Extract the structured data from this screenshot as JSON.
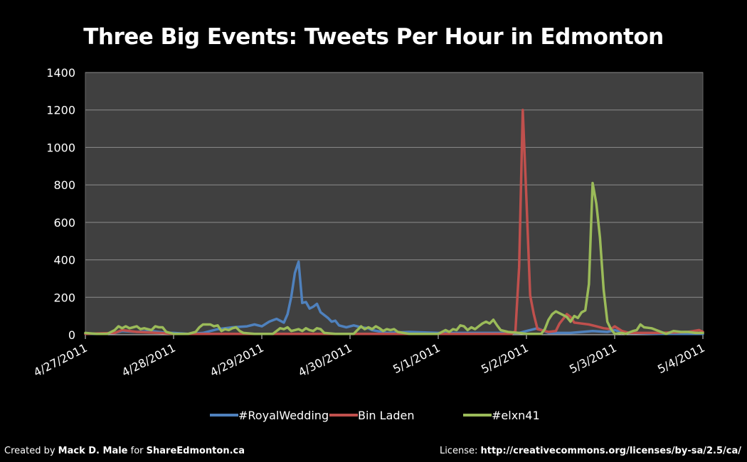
{
  "chart_data": {
    "type": "line",
    "title": "Three Big Events: Tweets Per Hour in Edmonton",
    "xlabel": "",
    "ylabel": "",
    "x_axis": {
      "tick_labels": [
        "4/27/2011",
        "4/28/2011",
        "4/29/2011",
        "4/30/2011",
        "5/1/2011",
        "5/2/2011",
        "5/3/2011",
        "5/4/2011"
      ],
      "range": [
        "4/27/2011 00:00",
        "5/4/2011 00:00"
      ]
    },
    "y_axis": {
      "tick_labels": [
        "0",
        "200",
        "400",
        "600",
        "800",
        "1000",
        "1200",
        "1400"
      ],
      "ylim": [
        0,
        1400
      ]
    },
    "grid": true,
    "legend_position": "bottom",
    "plot_background": "#404040",
    "series": [
      {
        "name": "#RoyalWedding",
        "color": "#4F81BD",
        "points": [
          [
            "4/27/2011 00:00",
            5
          ],
          [
            "4/27/2011 04:00",
            5
          ],
          [
            "4/27/2011 08:00",
            10
          ],
          [
            "4/27/2011 10:00",
            20
          ],
          [
            "4/27/2011 14:00",
            15
          ],
          [
            "4/27/2011 18:00",
            20
          ],
          [
            "4/27/2011 22:00",
            10
          ],
          [
            "4/28/2011 00:00",
            10
          ],
          [
            "4/28/2011 04:00",
            5
          ],
          [
            "4/28/2011 08:00",
            10
          ],
          [
            "4/28/2011 12:00",
            30
          ],
          [
            "4/28/2011 16:00",
            40
          ],
          [
            "4/28/2011 20:00",
            45
          ],
          [
            "4/28/2011 22:00",
            55
          ],
          [
            "4/29/2011 00:00",
            45
          ],
          [
            "4/29/2011 02:00",
            70
          ],
          [
            "4/29/2011 04:00",
            85
          ],
          [
            "4/29/2011 06:00",
            65
          ],
          [
            "4/29/2011 07:00",
            110
          ],
          [
            "4/29/2011 08:00",
            200
          ],
          [
            "4/29/2011 09:00",
            330
          ],
          [
            "4/29/2011 10:00",
            390
          ],
          [
            "4/29/2011 11:00",
            170
          ],
          [
            "4/29/2011 12:00",
            175
          ],
          [
            "4/29/2011 13:00",
            140
          ],
          [
            "4/29/2011 14:00",
            150
          ],
          [
            "4/29/2011 15:00",
            165
          ],
          [
            "4/29/2011 16:00",
            120
          ],
          [
            "4/29/2011 18:00",
            90
          ],
          [
            "4/29/2011 19:00",
            70
          ],
          [
            "4/29/2011 20:00",
            75
          ],
          [
            "4/29/2011 21:00",
            50
          ],
          [
            "4/29/2011 23:00",
            40
          ],
          [
            "4/30/2011 01:00",
            50
          ],
          [
            "4/30/2011 03:00",
            40
          ],
          [
            "4/30/2011 05:00",
            35
          ],
          [
            "4/30/2011 06:00",
            25
          ],
          [
            "4/30/2011 10:00",
            10
          ],
          [
            "4/30/2011 16:00",
            15
          ],
          [
            "5/1/2011 00:00",
            10
          ],
          [
            "5/1/2011 12:00",
            10
          ],
          [
            "5/1/2011 22:00",
            10
          ],
          [
            "5/2/2011 00:00",
            20
          ],
          [
            "5/2/2011 03:00",
            35
          ],
          [
            "5/2/2011 06:00",
            10
          ],
          [
            "5/2/2011 12:00",
            10
          ],
          [
            "5/2/2011 18:00",
            20
          ],
          [
            "5/2/2011 22:00",
            15
          ],
          [
            "5/3/2011 00:00",
            25
          ],
          [
            "5/3/2011 03:00",
            10
          ],
          [
            "5/3/2011 12:00",
            5
          ],
          [
            "5/4/2011 00:00",
            5
          ]
        ]
      },
      {
        "name": "Bin Laden",
        "color": "#C0504D",
        "points": [
          [
            "4/27/2011 00:00",
            5
          ],
          [
            "4/27/2011 08:00",
            10
          ],
          [
            "4/27/2011 10:00",
            25
          ],
          [
            "4/27/2011 14:00",
            15
          ],
          [
            "4/27/2011 20:00",
            10
          ],
          [
            "4/28/2011 00:00",
            5
          ],
          [
            "4/29/2011 00:00",
            5
          ],
          [
            "4/30/2011 00:00",
            5
          ],
          [
            "5/1/2011 00:00",
            5
          ],
          [
            "5/1/2011 20:00",
            5
          ],
          [
            "5/1/2011 21:00",
            20
          ],
          [
            "5/1/2011 22:00",
            360
          ],
          [
            "5/1/2011 23:00",
            1200
          ],
          [
            "5/2/2011 00:00",
            720
          ],
          [
            "5/2/2011 01:00",
            210
          ],
          [
            "5/2/2011 02:00",
            110
          ],
          [
            "5/2/2011 03:00",
            30
          ],
          [
            "5/2/2011 06:00",
            15
          ],
          [
            "5/2/2011 08:00",
            20
          ],
          [
            "5/2/2011 09:00",
            60
          ],
          [
            "5/2/2011 10:00",
            85
          ],
          [
            "5/2/2011 11:00",
            110
          ],
          [
            "5/2/2011 12:00",
            95
          ],
          [
            "5/2/2011 13:00",
            65
          ],
          [
            "5/2/2011 15:00",
            60
          ],
          [
            "5/2/2011 17:00",
            55
          ],
          [
            "5/2/2011 19:00",
            45
          ],
          [
            "5/2/2011 21:00",
            35
          ],
          [
            "5/2/2011 23:00",
            30
          ],
          [
            "5/3/2011 00:00",
            45
          ],
          [
            "5/3/2011 02:00",
            20
          ],
          [
            "5/3/2011 04:00",
            10
          ],
          [
            "5/3/2011 12:00",
            10
          ],
          [
            "5/3/2011 20:00",
            15
          ],
          [
            "5/3/2011 23:00",
            25
          ],
          [
            "5/4/2011 00:00",
            15
          ]
        ]
      },
      {
        "name": "#elxn41",
        "color": "#9BBB59",
        "points": [
          [
            "4/27/2011 00:00",
            10
          ],
          [
            "4/27/2011 03:00",
            5
          ],
          [
            "4/27/2011 06:00",
            5
          ],
          [
            "4/27/2011 08:00",
            25
          ],
          [
            "4/27/2011 09:00",
            45
          ],
          [
            "4/27/2011 10:00",
            35
          ],
          [
            "4/27/2011 11:00",
            45
          ],
          [
            "4/27/2011 12:00",
            35
          ],
          [
            "4/27/2011 13:00",
            40
          ],
          [
            "4/27/2011 14:00",
            45
          ],
          [
            "4/27/2011 15:00",
            30
          ],
          [
            "4/27/2011 16:00",
            35
          ],
          [
            "4/27/2011 18:00",
            25
          ],
          [
            "4/27/2011 19:00",
            45
          ],
          [
            "4/27/2011 20:00",
            40
          ],
          [
            "4/27/2011 21:00",
            40
          ],
          [
            "4/27/2011 22:00",
            15
          ],
          [
            "4/28/2011 00:00",
            5
          ],
          [
            "4/28/2011 04:00",
            5
          ],
          [
            "4/28/2011 06:00",
            15
          ],
          [
            "4/28/2011 07:00",
            40
          ],
          [
            "4/28/2011 08:00",
            55
          ],
          [
            "4/28/2011 09:00",
            55
          ],
          [
            "4/28/2011 10:00",
            55
          ],
          [
            "4/28/2011 11:00",
            45
          ],
          [
            "4/28/2011 12:00",
            50
          ],
          [
            "4/28/2011 13:00",
            20
          ],
          [
            "4/28/2011 14:00",
            30
          ],
          [
            "4/28/2011 15:00",
            25
          ],
          [
            "4/28/2011 16:00",
            35
          ],
          [
            "4/28/2011 17:00",
            40
          ],
          [
            "4/28/2011 18:00",
            20
          ],
          [
            "4/28/2011 19:00",
            10
          ],
          [
            "4/28/2011 22:00",
            5
          ],
          [
            "4/29/2011 03:00",
            5
          ],
          [
            "4/29/2011 04:00",
            20
          ],
          [
            "4/29/2011 05:00",
            35
          ],
          [
            "4/29/2011 06:00",
            30
          ],
          [
            "4/29/2011 07:00",
            40
          ],
          [
            "4/29/2011 08:00",
            20
          ],
          [
            "4/29/2011 09:00",
            25
          ],
          [
            "4/29/2011 10:00",
            30
          ],
          [
            "4/29/2011 11:00",
            20
          ],
          [
            "4/29/2011 12:00",
            35
          ],
          [
            "4/29/2011 13:00",
            25
          ],
          [
            "4/29/2011 14:00",
            20
          ],
          [
            "4/29/2011 15:00",
            35
          ],
          [
            "4/29/2011 16:00",
            30
          ],
          [
            "4/29/2011 17:00",
            10
          ],
          [
            "4/29/2011 20:00",
            5
          ],
          [
            "4/30/2011 01:00",
            5
          ],
          [
            "4/30/2011 02:00",
            25
          ],
          [
            "4/30/2011 03:00",
            45
          ],
          [
            "4/30/2011 04:00",
            30
          ],
          [
            "4/30/2011 05:00",
            40
          ],
          [
            "4/30/2011 06:00",
            30
          ],
          [
            "4/30/2011 07:00",
            45
          ],
          [
            "4/30/2011 08:00",
            35
          ],
          [
            "4/30/2011 09:00",
            20
          ],
          [
            "4/30/2011 10:00",
            30
          ],
          [
            "4/30/2011 11:00",
            25
          ],
          [
            "4/30/2011 12:00",
            30
          ],
          [
            "4/30/2011 13:00",
            15
          ],
          [
            "4/30/2011 16:00",
            5
          ],
          [
            "5/1/2011 00:00",
            5
          ],
          [
            "5/1/2011 02:00",
            25
          ],
          [
            "5/1/2011 03:00",
            15
          ],
          [
            "5/1/2011 04:00",
            30
          ],
          [
            "5/1/2011 05:00",
            25
          ],
          [
            "5/1/2011 06:00",
            50
          ],
          [
            "5/1/2011 07:00",
            45
          ],
          [
            "5/1/2011 08:00",
            25
          ],
          [
            "5/1/2011 09:00",
            40
          ],
          [
            "5/1/2011 10:00",
            30
          ],
          [
            "5/1/2011 11:00",
            45
          ],
          [
            "5/1/2011 12:00",
            60
          ],
          [
            "5/1/2011 13:00",
            70
          ],
          [
            "5/1/2011 14:00",
            60
          ],
          [
            "5/1/2011 15:00",
            80
          ],
          [
            "5/1/2011 16:00",
            50
          ],
          [
            "5/1/2011 17:00",
            25
          ],
          [
            "5/1/2011 19:00",
            15
          ],
          [
            "5/1/2011 22:00",
            10
          ],
          [
            "5/2/2011 00:00",
            5
          ],
          [
            "5/2/2011 04:00",
            5
          ],
          [
            "5/2/2011 05:00",
            30
          ],
          [
            "5/2/2011 06:00",
            80
          ],
          [
            "5/2/2011 07:00",
            110
          ],
          [
            "5/2/2011 08:00",
            125
          ],
          [
            "5/2/2011 09:00",
            115
          ],
          [
            "5/2/2011 10:00",
            105
          ],
          [
            "5/2/2011 11:00",
            95
          ],
          [
            "5/2/2011 12:00",
            70
          ],
          [
            "5/2/2011 13:00",
            100
          ],
          [
            "5/2/2011 14:00",
            90
          ],
          [
            "5/2/2011 15:00",
            120
          ],
          [
            "5/2/2011 16:00",
            130
          ],
          [
            "5/2/2011 17:00",
            270
          ],
          [
            "5/2/2011 18:00",
            810
          ],
          [
            "5/2/2011 19:00",
            700
          ],
          [
            "5/2/2011 20:00",
            520
          ],
          [
            "5/2/2011 21:00",
            240
          ],
          [
            "5/2/2011 22:00",
            70
          ],
          [
            "5/2/2011 23:00",
            30
          ],
          [
            "5/3/2011 00:00",
            5
          ],
          [
            "5/3/2011 02:00",
            10
          ],
          [
            "5/3/2011 03:00",
            5
          ],
          [
            "5/3/2011 05:00",
            20
          ],
          [
            "5/3/2011 06:00",
            25
          ],
          [
            "5/3/2011 07:00",
            55
          ],
          [
            "5/3/2011 08:00",
            40
          ],
          [
            "5/3/2011 10:00",
            35
          ],
          [
            "5/3/2011 12:00",
            20
          ],
          [
            "5/3/2011 14:00",
            5
          ],
          [
            "5/3/2011 16:00",
            20
          ],
          [
            "5/3/2011 18:00",
            15
          ],
          [
            "5/3/2011 20:00",
            15
          ],
          [
            "5/3/2011 22:00",
            10
          ],
          [
            "5/4/2011 00:00",
            10
          ]
        ]
      }
    ]
  },
  "footer": {
    "created_by": "Created by ",
    "author": "Mack D. Male",
    "for_text": " for ",
    "site": "ShareEdmonton.ca",
    "license_label": "License: ",
    "license_url": "http://creativecommons.org/licenses/by-sa/2.5/ca/"
  }
}
